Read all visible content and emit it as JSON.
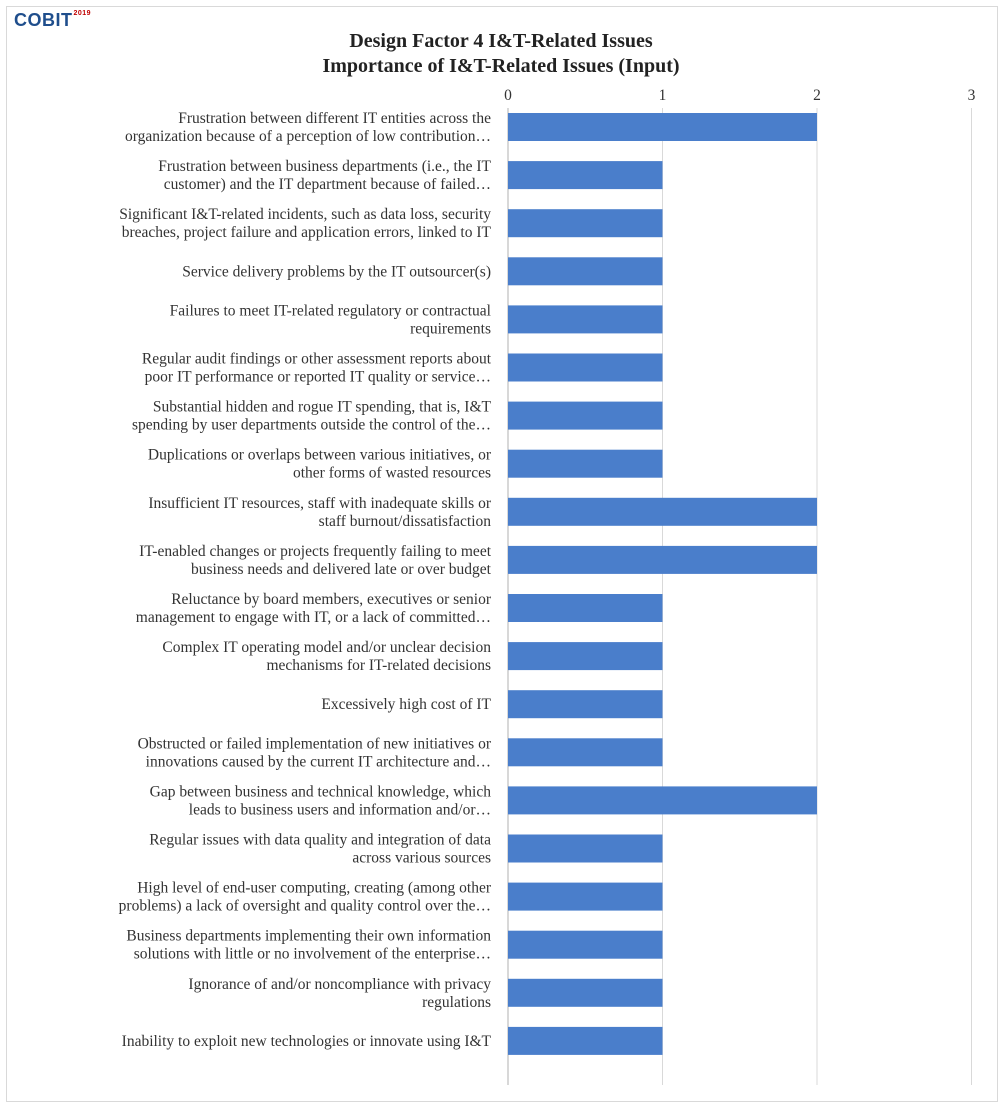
{
  "logo": {
    "text": "COBIT",
    "suffix": "2019"
  },
  "chart_data": {
    "type": "bar",
    "orientation": "horizontal",
    "title": "Design Factor 4 I&T-Related Issues",
    "subtitle": "Importance of I&T-Related Issues (Input)",
    "xlim": [
      0,
      3
    ],
    "ticks": [
      "0",
      "1",
      "2",
      "3"
    ],
    "grid": true,
    "bar_color": "#4a7ecb",
    "categories": [
      [
        "Frustration between different IT entities across the",
        "organization because of a perception of low contribution…"
      ],
      [
        "Frustration between business departments (i.e., the IT",
        "customer) and the IT department because of failed…"
      ],
      [
        "Significant I&T-related incidents, such as data loss, security",
        "breaches, project failure and application errors, linked to IT"
      ],
      [
        "Service delivery problems by the IT outsourcer(s)"
      ],
      [
        "Failures to meet IT-related regulatory or contractual",
        "requirements"
      ],
      [
        "Regular audit findings or other assessment reports about",
        "poor IT performance or reported IT quality or service…"
      ],
      [
        "Substantial hidden and rogue IT spending, that is, I&T",
        "spending by user departments outside the control of the…"
      ],
      [
        "Duplications or overlaps between various initiatives, or",
        "other forms of wasted resources"
      ],
      [
        "Insufficient IT resources, staff with inadequate skills or",
        "staff burnout/dissatisfaction"
      ],
      [
        "IT-enabled changes or projects frequently failing to meet",
        "business needs and delivered late or over budget"
      ],
      [
        "Reluctance by board members, executives or senior",
        "management to engage with IT, or a lack of committed…"
      ],
      [
        "Complex IT operating model and/or unclear decision",
        "mechanisms for IT-related decisions"
      ],
      [
        "Excessively high cost of IT"
      ],
      [
        "Obstructed or failed implementation of new initiatives or",
        "innovations caused by the current IT architecture and…"
      ],
      [
        "Gap between business and technical knowledge, which",
        "leads to business users and information and/or…"
      ],
      [
        "Regular issues with data quality and integration of data",
        "across various sources"
      ],
      [
        "High level of end-user computing, creating (among other",
        "problems) a lack of oversight and quality control over the…"
      ],
      [
        "Business departments implementing their own information",
        "solutions with little or no involvement of the enterprise…"
      ],
      [
        "Ignorance of and/or noncompliance with privacy",
        "regulations"
      ],
      [
        "Inability to exploit new technologies or innovate using I&T"
      ]
    ],
    "values": [
      2,
      1,
      1,
      1,
      1,
      1,
      1,
      1,
      2,
      2,
      1,
      1,
      1,
      1,
      2,
      1,
      1,
      1,
      1,
      1
    ]
  }
}
